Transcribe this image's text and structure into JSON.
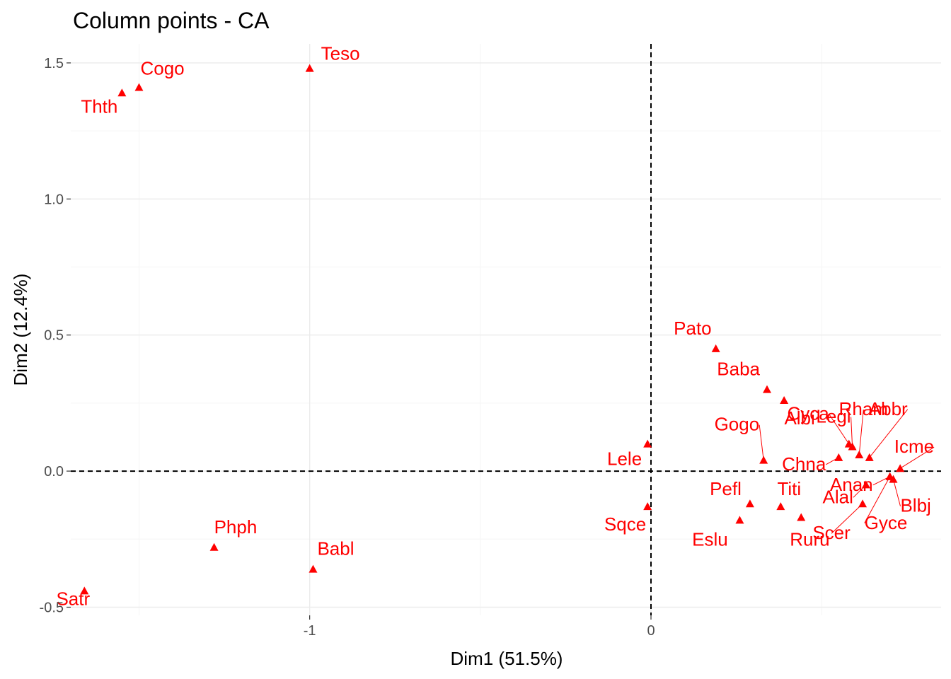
{
  "chart_data": {
    "type": "scatter",
    "title": "Column points - CA",
    "xlabel": "Dim1 (51.5%)",
    "ylabel": "Dim2 (12.4%)",
    "xlim": [
      -1.7,
      0.85
    ],
    "ylim": [
      -0.53,
      1.57
    ],
    "x_ticks": [
      -1,
      0
    ],
    "x_tick_labels": [
      "-1",
      "0"
    ],
    "y_ticks": [
      -0.5,
      0.0,
      0.5,
      1.0,
      1.5
    ],
    "y_tick_labels": [
      "-0.5",
      "0.0",
      "0.5",
      "1.0",
      "1.5"
    ],
    "reference_lines": {
      "x": 0,
      "y": 0,
      "style": "dashed"
    },
    "grid": true,
    "marker": "triangle",
    "color": "#ff0000",
    "points": [
      {
        "label": "Teso",
        "x": -1.0,
        "y": 1.48
      },
      {
        "label": "Cogo",
        "x": -1.5,
        "y": 1.41
      },
      {
        "label": "Thth",
        "x": -1.55,
        "y": 1.39
      },
      {
        "label": "Phph",
        "x": -1.28,
        "y": -0.28
      },
      {
        "label": "Babl",
        "x": -0.99,
        "y": -0.36
      },
      {
        "label": "Satr",
        "x": -1.66,
        "y": -0.44
      },
      {
        "label": "Lele",
        "x": -0.01,
        "y": 0.1
      },
      {
        "label": "Sqce",
        "x": -0.01,
        "y": -0.13
      },
      {
        "label": "Pato",
        "x": 0.19,
        "y": 0.45
      },
      {
        "label": "Baba",
        "x": 0.34,
        "y": 0.3
      },
      {
        "label": "Albi",
        "x": 0.39,
        "y": 0.26
      },
      {
        "label": "Cyca",
        "x": 0.58,
        "y": 0.1
      },
      {
        "label": "Rham",
        "x": 0.61,
        "y": 0.06
      },
      {
        "label": "Legi",
        "x": 0.59,
        "y": 0.09
      },
      {
        "label": "Gogo",
        "x": 0.33,
        "y": 0.04
      },
      {
        "label": "Chna",
        "x": 0.55,
        "y": 0.05
      },
      {
        "label": "Abbr",
        "x": 0.64,
        "y": 0.05
      },
      {
        "label": "Icme",
        "x": 0.73,
        "y": 0.01
      },
      {
        "label": "Anan",
        "x": 0.7,
        "y": -0.02
      },
      {
        "label": "Blbj",
        "x": 0.71,
        "y": -0.03
      },
      {
        "label": "Pefl",
        "x": 0.29,
        "y": -0.12
      },
      {
        "label": "Titi",
        "x": 0.38,
        "y": -0.13
      },
      {
        "label": "Alal",
        "x": 0.63,
        "y": -0.05
      },
      {
        "label": "Scer",
        "x": 0.62,
        "y": -0.12
      },
      {
        "label": "Eslu",
        "x": 0.26,
        "y": -0.18
      },
      {
        "label": "Ruru",
        "x": 0.44,
        "y": -0.17
      },
      {
        "label": "Gyce",
        "x": 0.7,
        "y": -0.02
      }
    ]
  }
}
